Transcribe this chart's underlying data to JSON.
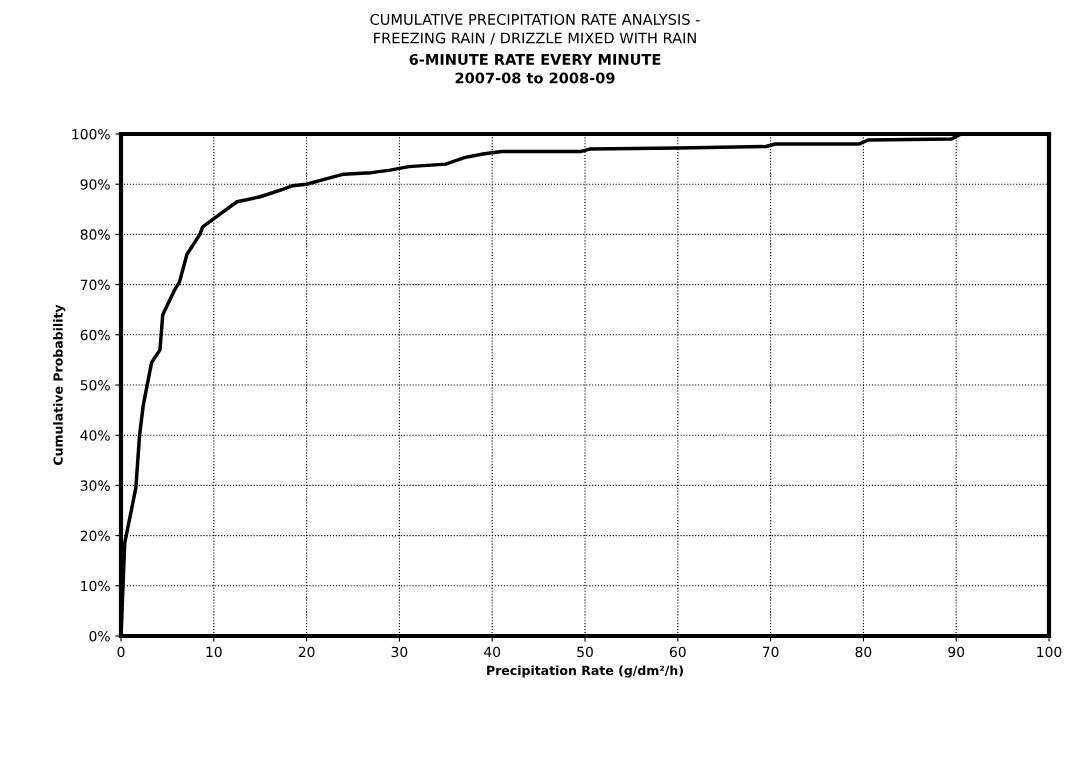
{
  "chart_data": {
    "type": "line",
    "title": "CUMULATIVE PRECIPITATION RATE ANALYSIS -\nFREEZING RAIN / DRIZZLE MIXED WITH RAIN",
    "subtitle": "6-MINUTE RATE EVERY MINUTE\n2007-08 to 2008-09",
    "xlabel": "Precipitation Rate (g/dm²/h)",
    "ylabel": "Cumulative Probability",
    "x": [
      0,
      0.4,
      1.6,
      2,
      2.4,
      3.3,
      4.2,
      4.5,
      5.8,
      6.3,
      7.1,
      8.5,
      8.8,
      11,
      12.5,
      15,
      17.5,
      18.5,
      20,
      22,
      24,
      27,
      29,
      31,
      35,
      37,
      39,
      41,
      49.5,
      50.5,
      60,
      69.5,
      70.5,
      79.5,
      80.5,
      89.5,
      90.5
    ],
    "series": [
      {
        "color": "#000000",
        "values": [
          0,
          18.5,
          29.5,
          40,
          46,
          54.5,
          57,
          64,
          69,
          70.5,
          76,
          80,
          81.5,
          84.5,
          86.5,
          87.5,
          89,
          89.7,
          90,
          91,
          92,
          92.3,
          92.8,
          93.5,
          94,
          95.3,
          96,
          96.5,
          96.5,
          97,
          97.2,
          97.5,
          98,
          98,
          98.8,
          99,
          100
        ]
      }
    ],
    "xlim": [
      0,
      100
    ],
    "xticks": [
      0,
      10,
      20,
      30,
      40,
      50,
      60,
      70,
      80,
      90,
      100
    ],
    "ylim": [
      0,
      100
    ],
    "yticks": [
      {
        "value": 0,
        "label": "0%"
      },
      {
        "value": 10,
        "label": "10%"
      },
      {
        "value": 20,
        "label": "20%"
      },
      {
        "value": 30,
        "label": "30%"
      },
      {
        "value": 40,
        "label": "40%"
      },
      {
        "value": 50,
        "label": "50%"
      },
      {
        "value": 60,
        "label": "60%"
      },
      {
        "value": 70,
        "label": "70%"
      },
      {
        "value": 80,
        "label": "80%"
      },
      {
        "value": 90,
        "label": "90%"
      },
      {
        "value": 100,
        "label": "100%"
      }
    ],
    "grid": true,
    "marker": "none",
    "line_style": "solid",
    "legend": false
  }
}
